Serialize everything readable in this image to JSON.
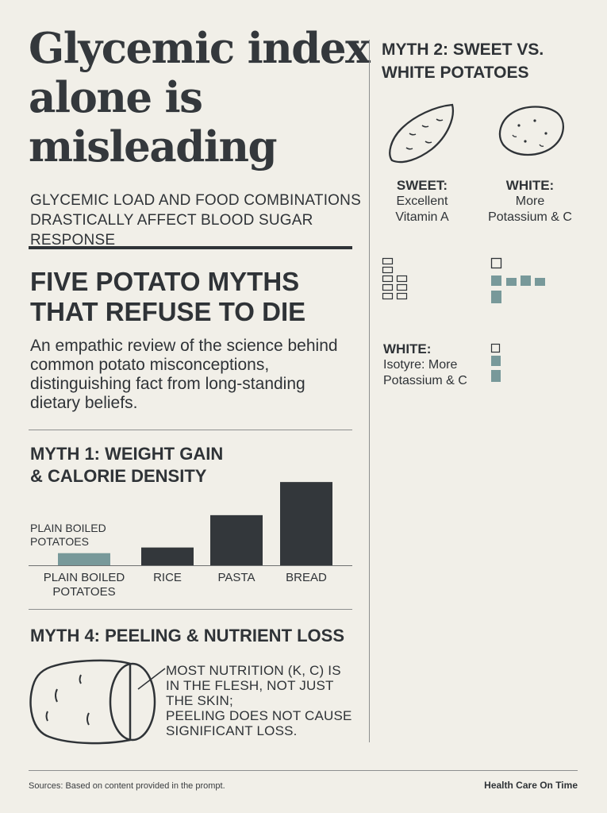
{
  "headline": {
    "title": "Glycemic index alone is misleading"
  },
  "subhead": "GLYCEMIC LOAD AND FOOD COMBINATIONS DRASTICALLY AFFECT BLOOD SUGAR RESPONSE",
  "section": {
    "title": "FIVE POTATO MYTHS THAT REFUSE TO DIE",
    "intro": "An empathic review of the science behind\ncommon potato misconceptions,\ndistinguishing  fact from long-standing\ndietary beliefs."
  },
  "myth1": {
    "title_line1": "MYTH 1: WEIGHT GAIN",
    "title_line2": "& CALORIE DENSITY",
    "side_label_line1": "PLAIN BOILED",
    "side_label_line2": "POTATOES"
  },
  "chart_data": {
    "type": "bar",
    "categories": [
      "PLAIN BOILED POTATOES",
      "RICE",
      "PASTA",
      "BREAD"
    ],
    "category_lines": [
      [
        "PLAIN BOILED",
        "POTATOES"
      ],
      [
        "RICE"
      ],
      [
        "PASTA"
      ],
      [
        "BREAD"
      ]
    ],
    "values": [
      15,
      22,
      62,
      103
    ],
    "ylim": [
      0,
      110
    ],
    "grid": false,
    "colors": [
      "#78999a",
      "#33373b",
      "#33373b",
      "#33373b"
    ],
    "title": "",
    "xlabel": "",
    "ylabel": ""
  },
  "myth4": {
    "title": "MYTH 4: PEELING & NUTRIENT LOSS",
    "note_lines": [
      "MOST NUTRITION (K, C) IS",
      "IN THE FLESH, NOT JUST",
      "THE SKIN;",
      "PEELING DOES NOT CAUSE",
      "SIGNIFICANT LOSS."
    ]
  },
  "myth2": {
    "title_line1": "MYTH 2: SWEET VS.",
    "title_line2": "WHITE POTATOES",
    "sweet": {
      "label": "SWEET:",
      "line1": "Excellent",
      "line2": "Vitamin A"
    },
    "white": {
      "label": "WHITE:",
      "line1": "More",
      "line2": "Potassium & C"
    },
    "white2": {
      "label": "WHITE:",
      "line1": "Isotyre: More",
      "line2": "Potassium & C"
    }
  },
  "footer": {
    "sources": "Sources: Based on content provided in the prompt.",
    "brand": "Health Care On Time"
  },
  "colors": {
    "ink": "#2f3337",
    "teal": "#78999a",
    "background": "#f1efe8",
    "rule": "#8d8f8f"
  },
  "icons": [
    "sweet-potato-icon",
    "white-potato-icon",
    "peeled-potato-icon"
  ]
}
